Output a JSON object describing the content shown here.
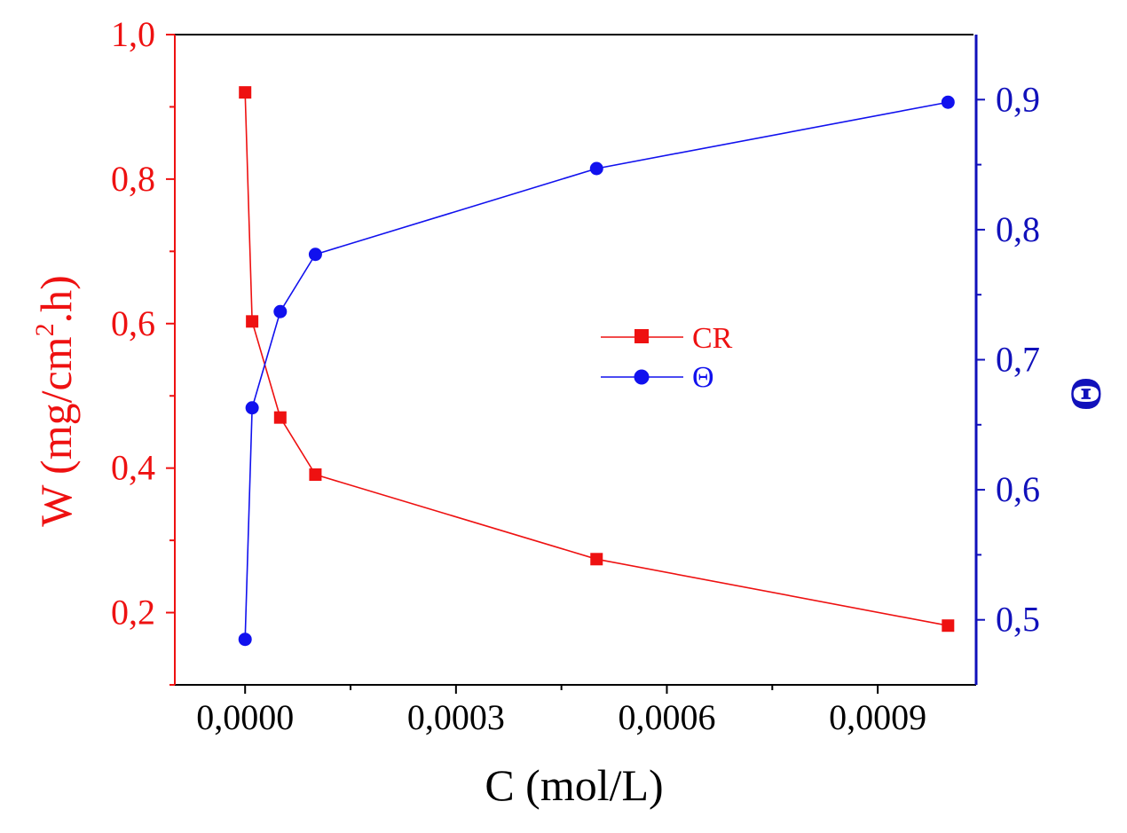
{
  "chart_data": {
    "type": "line",
    "xlabel": "C (mol/L)",
    "ylabel_left": "W (mg/cm",
    "ylabel_left_sup": "2",
    "ylabel_left_end": ".h)",
    "ylabel_right": "Θ",
    "x_ticks": [
      "0,0000",
      "0,0003",
      "0,0006",
      "0,0009"
    ],
    "x_tick_values": [
      0,
      0.0003,
      0.0006,
      0.0009
    ],
    "y_left_ticks": [
      "0,2",
      "0,4",
      "0,6",
      "0,8",
      "1,0"
    ],
    "y_left_tick_values": [
      0.2,
      0.4,
      0.6,
      0.8,
      1.0
    ],
    "y_right_ticks": [
      "0,5",
      "0,6",
      "0,7",
      "0,8",
      "0,9"
    ],
    "y_right_tick_values": [
      0.5,
      0.6,
      0.7,
      0.8,
      0.9
    ],
    "xlim": [
      -0.0001,
      0.00104
    ],
    "ylim_left": [
      0.1,
      1.0
    ],
    "ylim_right": [
      0.45,
      0.95
    ],
    "legend_position": "center",
    "series": [
      {
        "name": "CR",
        "axis": "left",
        "marker": "square",
        "color": "#ee1111",
        "x": [
          0,
          1e-05,
          5e-05,
          0.0001,
          0.0005,
          0.001
        ],
        "y": [
          0.92,
          0.603,
          0.47,
          0.391,
          0.274,
          0.182
        ]
      },
      {
        "name": "Θ",
        "axis": "right",
        "marker": "circle",
        "color": "#1111ee",
        "x": [
          0,
          1e-05,
          5e-05,
          0.0001,
          0.0005,
          0.001
        ],
        "y": [
          0.485,
          0.663,
          0.737,
          0.781,
          0.847,
          0.898
        ]
      }
    ]
  },
  "colors": {
    "left_axis": "#ee1111",
    "right_axis": "#1111bb",
    "bottom_axis": "#000000"
  }
}
